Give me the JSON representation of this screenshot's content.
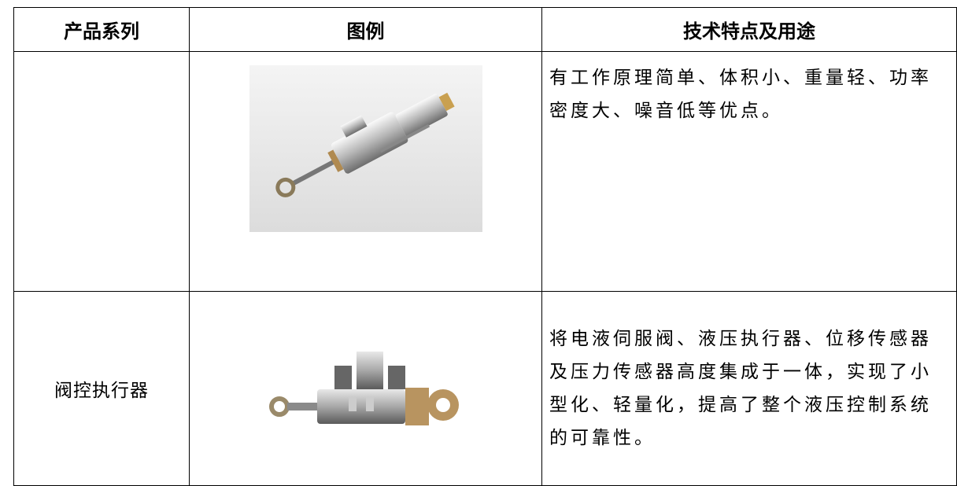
{
  "table": {
    "header": [
      "产品系列",
      "图例",
      "技术特点及用途"
    ],
    "rows": [
      {
        "description": "有工作原理简单、体积小、重量轻、功率密度大、噪音低等优点。"
      },
      {
        "series": "阀控执行器",
        "description": "将电液伺服阀、液压执行器、位移传感器及压力传感器高度集成于一体，实现了小型化、轻量化，提高了整个液压控制系统的可靠性。"
      }
    ]
  }
}
